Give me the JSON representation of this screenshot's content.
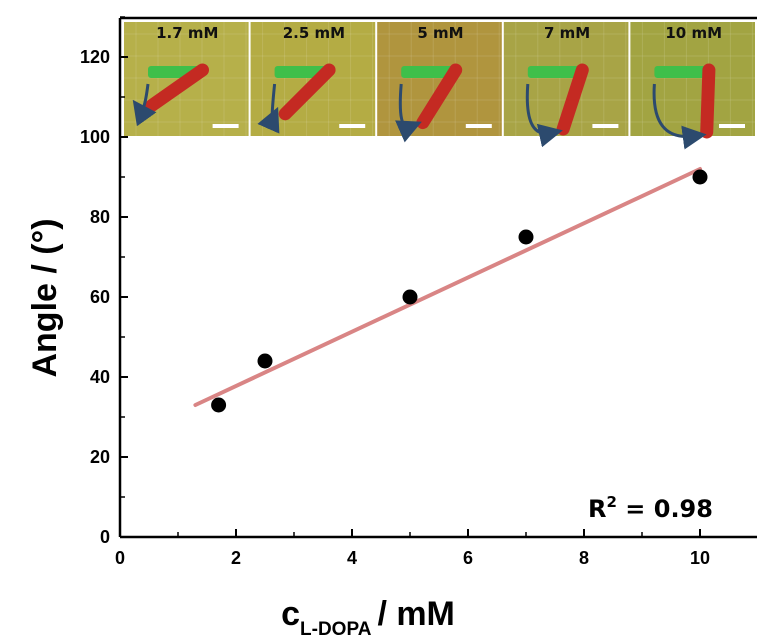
{
  "chart_data": {
    "type": "scatter",
    "xlabel_main": "c",
    "xlabel_sub": "L-DOPA",
    "xlabel_unit": "/ mM",
    "ylabel": "Angle / (°)",
    "xlim": [
      0,
      11
    ],
    "ylim": [
      0,
      130
    ],
    "x_ticks": [
      0,
      2,
      4,
      6,
      8,
      10
    ],
    "y_ticks": [
      0,
      20,
      40,
      60,
      80,
      100,
      120
    ],
    "grid": false,
    "series": [
      {
        "x": [
          1.7,
          2.5,
          5,
          7,
          10
        ],
        "y": [
          33,
          44,
          60,
          75,
          90
        ],
        "color": "#000000"
      }
    ],
    "fit_line": {
      "x": [
        1.3,
        10
      ],
      "y": [
        33,
        92
      ],
      "color": "#d98585"
    },
    "annotation": {
      "r_label": "R",
      "r_sup": "2",
      "r_value": " = 0.98"
    },
    "inset_panels": [
      "1.7 mM",
      "2.5 mM",
      "5 mM",
      "7 mM",
      "10 mM"
    ]
  }
}
